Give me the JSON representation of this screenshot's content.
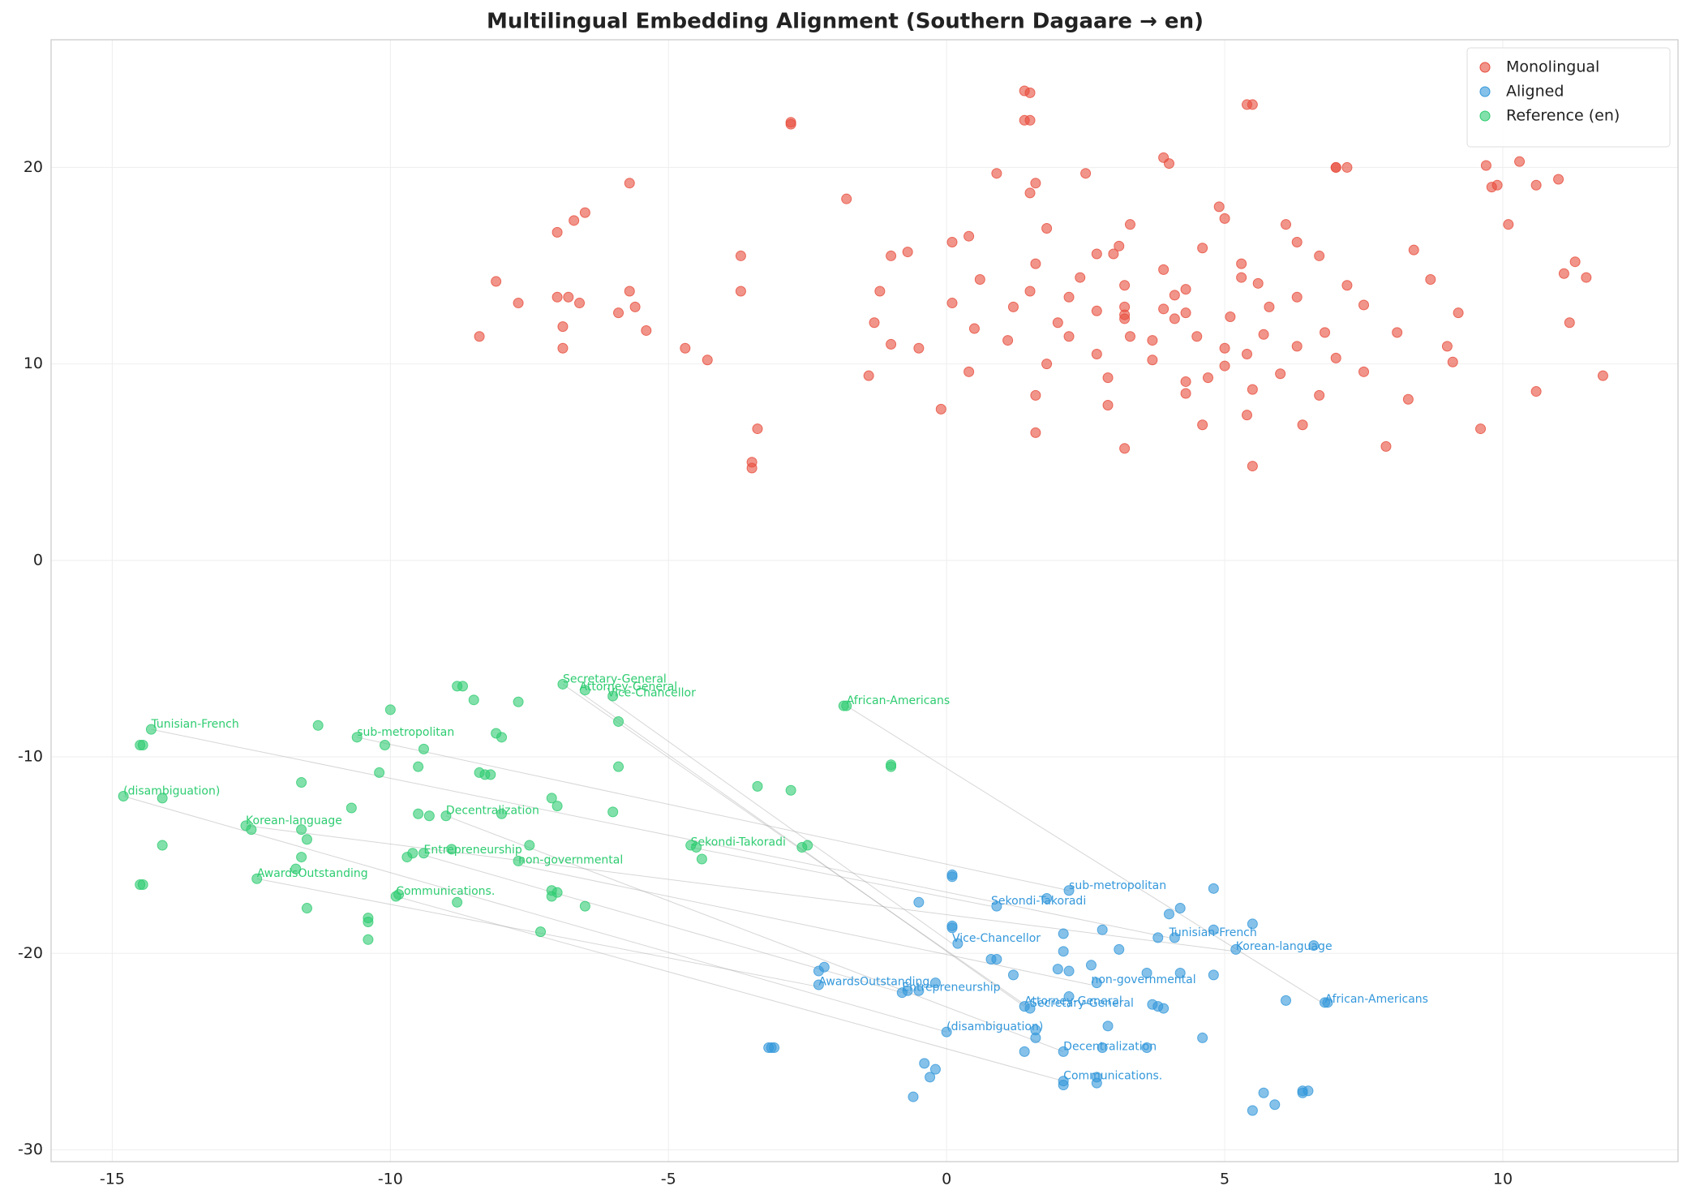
{
  "chart_data": {
    "type": "scatter",
    "title": "Multilingual Embedding Alignment (Southern Dagaare → en)",
    "xlim": [
      -16.1,
      13.15
    ],
    "ylim": [
      -30.6,
      26.5
    ],
    "xticks": [
      -15,
      -10,
      -5,
      0,
      5,
      10
    ],
    "yticks": [
      -30,
      -20,
      -10,
      0,
      10,
      20
    ],
    "grid": true,
    "legend": "upper right",
    "series": [
      {
        "name": "Monolingual",
        "color": "#e74c3c",
        "x": [
          -8.4,
          -8.1,
          -7.7,
          -7.0,
          -6.7,
          -6.5,
          -7.0,
          -6.8,
          -6.6,
          -6.9,
          -6.9,
          -5.9,
          -5.7,
          -5.6,
          -5.4,
          -5.7,
          -4.7,
          -4.3,
          -3.7,
          -3.7,
          -3.4,
          -3.5,
          -3.5,
          -2.8,
          -1.8,
          -1.4,
          -1.3,
          -1.2,
          -1.0,
          -1.0,
          -0.7,
          -0.5,
          -0.1,
          0.1,
          0.1,
          0.4,
          0.4,
          0.5,
          0.6,
          0.9,
          1.1,
          1.2,
          1.4,
          1.4,
          1.5,
          1.6,
          1.6,
          1.5,
          1.6,
          1.6,
          1.8,
          1.8,
          2.0,
          2.2,
          2.2,
          2.4,
          2.5,
          2.7,
          2.7,
          2.7,
          2.9,
          2.9,
          3.0,
          3.1,
          3.2,
          3.2,
          3.2,
          3.2,
          3.3,
          3.3,
          3.2,
          3.7,
          3.7,
          3.9,
          3.9,
          3.9,
          4.0,
          4.1,
          4.1,
          4.3,
          4.3,
          4.3,
          4.3,
          4.5,
          4.6,
          4.6,
          4.7,
          4.9,
          5.0,
          5.0,
          5.0,
          5.1,
          5.3,
          5.3,
          5.4,
          5.4,
          5.4,
          5.5,
          5.5,
          5.5,
          5.6,
          5.7,
          5.8,
          6.0,
          6.1,
          6.3,
          6.3,
          6.3,
          6.4,
          6.7,
          6.7,
          6.8,
          7.0,
          7.0,
          7.0,
          7.2,
          7.2,
          7.5,
          7.5,
          7.9,
          8.1,
          8.3,
          8.4,
          8.7,
          9.0,
          9.1,
          9.2,
          9.6,
          9.7,
          9.8,
          9.9,
          10.1,
          10.3,
          10.6,
          10.6,
          11.0,
          11.1,
          11.2,
          11.3,
          11.5,
          11.8,
          -2.8,
          1.5,
          1.5
        ],
        "y": [
          11.4,
          14.2,
          13.1,
          16.7,
          17.3,
          17.7,
          13.4,
          13.4,
          13.1,
          11.9,
          10.8,
          12.6,
          13.7,
          12.9,
          11.7,
          19.2,
          10.8,
          10.2,
          15.5,
          13.7,
          6.7,
          5.0,
          4.7,
          22.3,
          18.4,
          9.4,
          12.1,
          13.7,
          15.5,
          11.0,
          15.7,
          10.8,
          7.7,
          16.2,
          13.1,
          16.5,
          9.6,
          11.8,
          14.3,
          19.7,
          11.2,
          12.9,
          22.4,
          23.9,
          18.7,
          19.2,
          15.1,
          13.7,
          8.4,
          6.5,
          10.0,
          16.9,
          12.1,
          13.4,
          11.4,
          14.4,
          19.7,
          12.7,
          15.6,
          10.5,
          9.3,
          7.9,
          15.6,
          16.0,
          12.5,
          12.9,
          14.0,
          12.3,
          17.1,
          11.4,
          5.7,
          11.2,
          10.2,
          20.5,
          12.8,
          14.8,
          20.2,
          13.5,
          12.3,
          9.1,
          13.8,
          8.5,
          12.6,
          11.4,
          15.9,
          6.9,
          9.3,
          18.0,
          10.8,
          9.9,
          17.4,
          12.4,
          15.1,
          14.4,
          7.4,
          10.5,
          23.2,
          23.2,
          8.7,
          4.8,
          14.1,
          11.5,
          12.9,
          9.5,
          17.1,
          13.4,
          10.9,
          16.2,
          6.9,
          15.5,
          8.4,
          11.6,
          10.3,
          20.0,
          20.0,
          20.0,
          14.0,
          13.0,
          9.6,
          5.8,
          11.6,
          8.2,
          15.8,
          14.3,
          10.9,
          10.1,
          12.6,
          6.7,
          20.1,
          19.0,
          19.1,
          17.1,
          20.3,
          19.1,
          8.6,
          19.4,
          14.6,
          12.1,
          15.2,
          14.4,
          9.4,
          22.2,
          23.8,
          22.4
        ]
      },
      {
        "name": "Aligned",
        "color": "#3498db",
        "x": [
          -2.3,
          -2.3,
          -2.2,
          -3.2,
          -3.15,
          -3.1,
          -0.8,
          -0.7,
          -0.5,
          -0.6,
          -0.5,
          -0.4,
          -0.3,
          -0.2,
          -0.2,
          0.0,
          0.1,
          0.1,
          0.1,
          0.1,
          0.2,
          0.8,
          0.9,
          0.9,
          1.2,
          1.4,
          1.4,
          1.5,
          1.6,
          1.6,
          1.8,
          2.0,
          2.1,
          2.1,
          2.2,
          2.1,
          2.1,
          2.1,
          2.2,
          2.2,
          2.6,
          2.7,
          2.7,
          2.7,
          2.8,
          2.8,
          2.9,
          3.1,
          3.6,
          3.6,
          3.7,
          3.8,
          3.8,
          3.9,
          4.0,
          4.1,
          4.2,
          4.2,
          4.6,
          4.8,
          4.8,
          4.8,
          5.2,
          5.5,
          5.5,
          5.7,
          5.9,
          6.1,
          6.4,
          6.4,
          6.5,
          6.6,
          6.8,
          6.85
        ],
        "y": [
          -21.6,
          -20.9,
          -20.7,
          -24.8,
          -24.8,
          -24.8,
          -22.0,
          -21.9,
          -17.4,
          -27.3,
          -21.9,
          -25.6,
          -26.3,
          -25.9,
          -21.5,
          -24.0,
          -16.1,
          -16.0,
          -18.7,
          -18.6,
          -19.5,
          -20.3,
          -17.6,
          -20.3,
          -21.1,
          -25.0,
          -22.7,
          -22.8,
          -24.3,
          -23.9,
          -17.2,
          -20.8,
          -19.0,
          -19.9,
          -22.2,
          -25.0,
          -26.5,
          -26.7,
          -16.8,
          -20.9,
          -20.6,
          -21.5,
          -26.6,
          -26.3,
          -18.8,
          -24.8,
          -23.7,
          -19.8,
          -21.0,
          -24.8,
          -22.6,
          -22.7,
          -19.2,
          -22.8,
          -18.0,
          -19.2,
          -21.0,
          -17.7,
          -24.3,
          -21.1,
          -16.7,
          -18.8,
          -19.8,
          -18.5,
          -28.0,
          -27.1,
          -27.7,
          -22.4,
          -27.0,
          -27.1,
          -27.0,
          -19.6,
          -22.5,
          -22.5
        ]
      },
      {
        "name": "Reference (en)",
        "color": "#2ecc71",
        "x": [
          -14.8,
          -14.3,
          -14.5,
          -14.45,
          -14.1,
          -14.1,
          -14.5,
          -14.45,
          -12.6,
          -12.5,
          -12.4,
          -11.6,
          -11.6,
          -11.5,
          -11.6,
          -11.7,
          -11.5,
          -11.3,
          -10.7,
          -10.6,
          -10.4,
          -10.4,
          -10.4,
          -10.2,
          -10.1,
          -10.0,
          -9.9,
          -9.85,
          -9.7,
          -9.6,
          -9.5,
          -9.5,
          -9.4,
          -9.4,
          -9.3,
          -9.0,
          -8.9,
          -8.8,
          -8.7,
          -8.8,
          -8.5,
          -8.4,
          -8.3,
          -8.2,
          -8.1,
          -8.0,
          -8.0,
          -7.7,
          -7.7,
          -7.5,
          -7.3,
          -7.1,
          -7.1,
          -7.1,
          -7.0,
          -7.0,
          -6.9,
          -6.5,
          -6.5,
          -6.0,
          -6.0,
          -5.9,
          -5.9,
          -4.6,
          -4.5,
          -4.4,
          -3.4,
          -2.8,
          -2.6,
          -2.5,
          -1.8,
          -1.85,
          -1.0,
          -1.0
        ],
        "y": [
          -12.0,
          -8.6,
          -9.4,
          -9.4,
          -12.1,
          -14.5,
          -16.5,
          -16.5,
          -13.5,
          -13.7,
          -16.2,
          -11.3,
          -13.7,
          -14.2,
          -15.1,
          -15.7,
          -17.7,
          -8.4,
          -12.6,
          -9.0,
          -18.2,
          -18.4,
          -19.3,
          -10.8,
          -9.4,
          -7.6,
          -17.1,
          -17.0,
          -15.1,
          -14.9,
          -12.9,
          -10.5,
          -14.9,
          -9.6,
          -13.0,
          -13.0,
          -14.7,
          -6.4,
          -6.4,
          -17.4,
          -7.1,
          -10.8,
          -10.9,
          -10.9,
          -8.8,
          -9.0,
          -12.9,
          -7.2,
          -15.3,
          -14.5,
          -18.9,
          -12.1,
          -16.8,
          -17.1,
          -12.5,
          -16.9,
          -6.3,
          -17.6,
          -6.6,
          -6.9,
          -12.8,
          -10.5,
          -8.2,
          -14.5,
          -14.6,
          -15.2,
          -11.5,
          -11.7,
          -14.6,
          -14.5,
          -7.4,
          -7.4,
          -10.4,
          -10.5
        ]
      }
    ],
    "annotations": [
      {
        "text": "Tunisian-French",
        "ref": [
          -14.3,
          -8.6
        ],
        "aligned": [
          4.0,
          -19.2
        ]
      },
      {
        "text": "sub-metropolitan",
        "ref": [
          -10.6,
          -9.0
        ],
        "aligned": [
          2.2,
          -16.8
        ]
      },
      {
        "text": "(disambiguation)",
        "ref": [
          -14.8,
          -12.0
        ],
        "aligned": [
          0.0,
          -24.0
        ]
      },
      {
        "text": "Korean-language",
        "ref": [
          -12.6,
          -13.5
        ],
        "aligned": [
          5.2,
          -19.9
        ]
      },
      {
        "text": "AwardsOutstanding",
        "ref": [
          -12.4,
          -16.2
        ],
        "aligned": [
          -2.3,
          -21.7
        ]
      },
      {
        "text": "Secretary-General",
        "ref": [
          -6.9,
          -6.3
        ],
        "aligned": [
          1.5,
          -22.8
        ]
      },
      {
        "text": "Attorney-General",
        "ref": [
          -6.6,
          -6.7
        ],
        "aligned": [
          1.4,
          -22.7
        ]
      },
      {
        "text": "Vice-Chancellor",
        "ref": [
          -6.1,
          -7.0
        ],
        "aligned": [
          0.1,
          -19.5
        ]
      },
      {
        "text": "African-Americans",
        "ref": [
          -1.8,
          -7.4
        ],
        "aligned": [
          6.8,
          -22.6
        ]
      },
      {
        "text": "Decentralization",
        "ref": [
          -9.0,
          -13.0
        ],
        "aligned": [
          2.1,
          -25.0
        ]
      },
      {
        "text": "Entrepreneurship",
        "ref": [
          -9.4,
          -15.0
        ],
        "aligned": [
          -0.8,
          -22.0
        ]
      },
      {
        "text": "non-governmental",
        "ref": [
          -7.7,
          -15.5
        ],
        "aligned": [
          2.6,
          -21.6
        ]
      },
      {
        "text": "Sekondi-Takoradi",
        "ref": [
          -4.6,
          -14.6
        ],
        "aligned": [
          0.8,
          -17.6
        ]
      },
      {
        "text": "Communications.",
        "ref": [
          -9.9,
          -17.1
        ],
        "aligned": [
          2.1,
          -26.5
        ]
      }
    ]
  }
}
